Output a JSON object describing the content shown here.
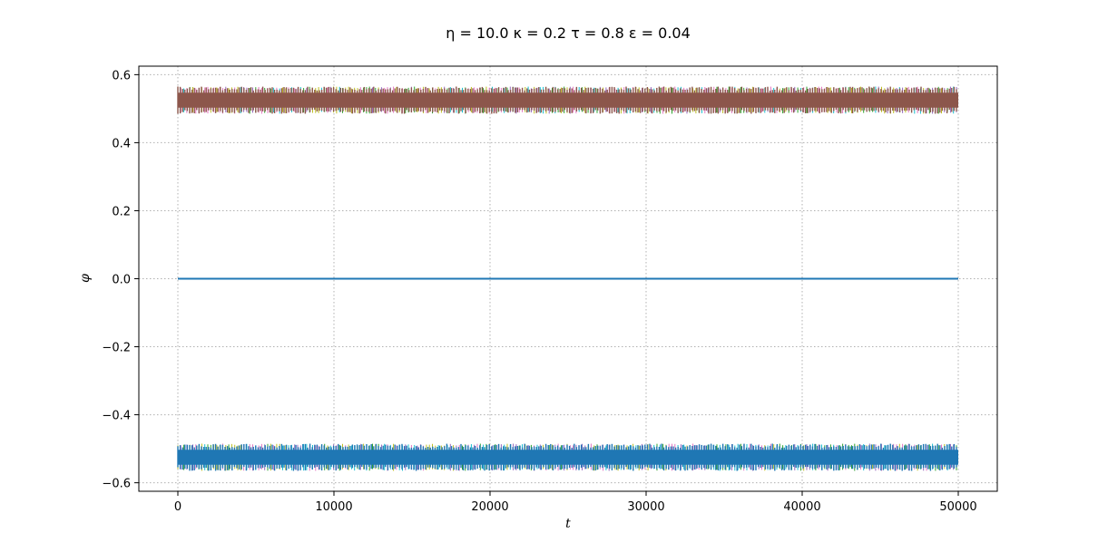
{
  "chart_data": {
    "type": "line",
    "title": "η = 10.0 κ = 0.2 τ = 0.8 ε = 0.04",
    "xlabel": "t",
    "ylabel": "φ",
    "xlim": [
      -2500,
      52500
    ],
    "ylim": [
      -0.625,
      0.625
    ],
    "grid": true,
    "x_ticks": [
      0,
      10000,
      20000,
      30000,
      40000,
      50000
    ],
    "x_tick_labels": [
      "0",
      "10000",
      "20000",
      "30000",
      "40000",
      "50000"
    ],
    "y_ticks": [
      -0.6,
      -0.4,
      -0.2,
      0.0,
      0.2,
      0.4,
      0.6
    ],
    "y_tick_labels": [
      "−0.6",
      "−0.4",
      "−0.2",
      "0.0",
      "0.2",
      "0.4",
      "0.6"
    ],
    "series": [
      {
        "color": "#8c564b",
        "x": [
          0,
          50000
        ],
        "y_center": [
          0.525,
          0.525
        ],
        "envelope_low": [
          0.485,
          0.485
        ],
        "envelope_high": [
          0.565,
          0.565
        ],
        "oscillating": true
      },
      {
        "color": "#1f77b4",
        "x": [
          0,
          50000
        ],
        "y": [
          0.0,
          0.0
        ],
        "oscillating": false
      },
      {
        "color": "#1f77b4",
        "x": [
          0,
          50000
        ],
        "y_center": [
          -0.525,
          -0.525
        ],
        "envelope_low": [
          -0.565,
          -0.565
        ],
        "envelope_high": [
          -0.485,
          -0.485
        ],
        "oscillating": true
      }
    ],
    "accent_colors": [
      "#17becf",
      "#bcbd22",
      "#9467bd",
      "#2ca02c",
      "#e377c2"
    ]
  }
}
